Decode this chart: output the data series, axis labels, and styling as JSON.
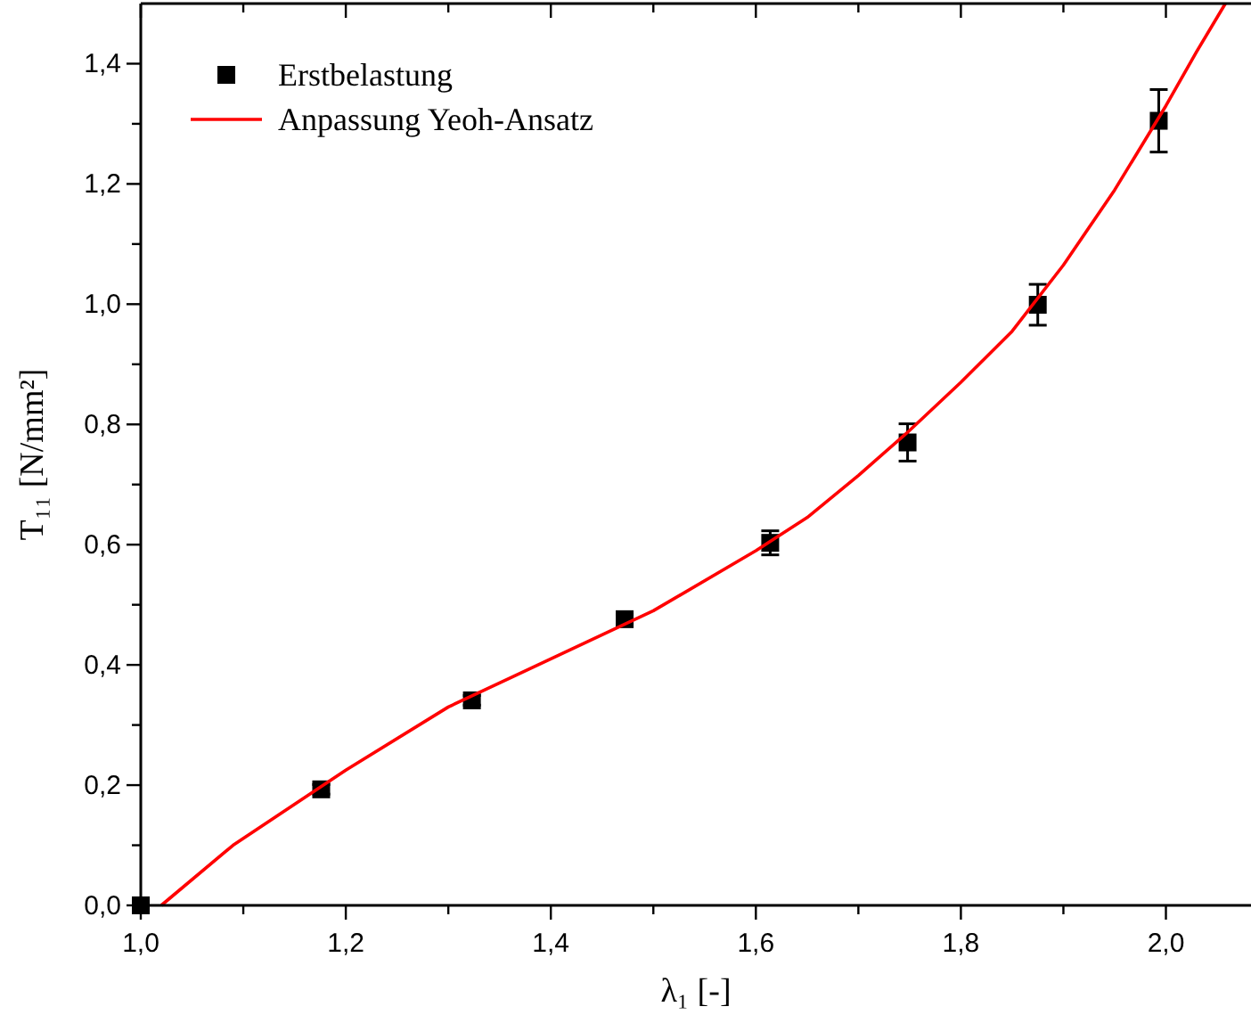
{
  "chart_data": {
    "type": "scatter",
    "xlabel": "λ₁ [-]",
    "ylabel": "T₁₁ [N/mm²]",
    "xlim": [
      1.0,
      2.083
    ],
    "ylim": [
      0,
      1.5
    ],
    "xticks": [
      {
        "value": 1.0,
        "label": "1,0"
      },
      {
        "value": 1.1,
        "label": null
      },
      {
        "value": 1.2,
        "label": "1,2"
      },
      {
        "value": 1.3,
        "label": null
      },
      {
        "value": 1.4,
        "label": "1,4"
      },
      {
        "value": 1.5,
        "label": null
      },
      {
        "value": 1.6,
        "label": "1,6"
      },
      {
        "value": 1.7,
        "label": null
      },
      {
        "value": 1.8,
        "label": "1,8"
      },
      {
        "value": 1.9,
        "label": null
      },
      {
        "value": 2.0,
        "label": "2,0"
      }
    ],
    "yticks": [
      {
        "value": 0,
        "label": "0,0"
      },
      {
        "value": 0.1,
        "label": null
      },
      {
        "value": 0.2,
        "label": "0,2"
      },
      {
        "value": 0.3,
        "label": null
      },
      {
        "value": 0.4,
        "label": "0,4"
      },
      {
        "value": 0.5,
        "label": null
      },
      {
        "value": 0.6,
        "label": "0,6"
      },
      {
        "value": 0.7,
        "label": null
      },
      {
        "value": 0.8,
        "label": "0,8"
      },
      {
        "value": 0.9,
        "label": null
      },
      {
        "value": 1.0,
        "label": "1,0"
      },
      {
        "value": 1.1,
        "label": null
      },
      {
        "value": 1.2,
        "label": "1,2"
      },
      {
        "value": 1.3,
        "label": null
      },
      {
        "value": 1.4,
        "label": "1,4"
      }
    ],
    "legend": "top left",
    "grid": false,
    "series": [
      {
        "name": "Erstbelastung",
        "marker": "square",
        "color": "#000000",
        "x": [
          1.0,
          1.176,
          1.323,
          1.472,
          1.614,
          1.748,
          1.875,
          1.993
        ],
        "values": [
          0,
          0.193,
          0.341,
          0.476,
          0.603,
          0.77,
          0.999,
          1.305
        ],
        "errors": [
          null,
          0.008,
          0.008,
          0.008,
          0.02,
          0.031,
          0.034,
          0.052
        ]
      },
      {
        "name": "Anpassung Yeoh-Ansatz",
        "type": "line",
        "marker": "none",
        "line_style": "solid",
        "color": "#ff0000",
        "x": [
          1.02,
          1.09,
          1.2,
          1.3,
          1.4,
          1.5,
          1.6,
          1.65,
          1.7,
          1.75,
          1.8,
          1.85,
          1.9,
          1.95,
          2.0,
          2.03,
          2.058
        ],
        "values": [
          0,
          0.1,
          0.225,
          0.33,
          0.41,
          0.49,
          0.59,
          0.645,
          0.715,
          0.79,
          0.87,
          0.955,
          1.065,
          1.19,
          1.33,
          1.42,
          1.5
        ]
      }
    ]
  }
}
